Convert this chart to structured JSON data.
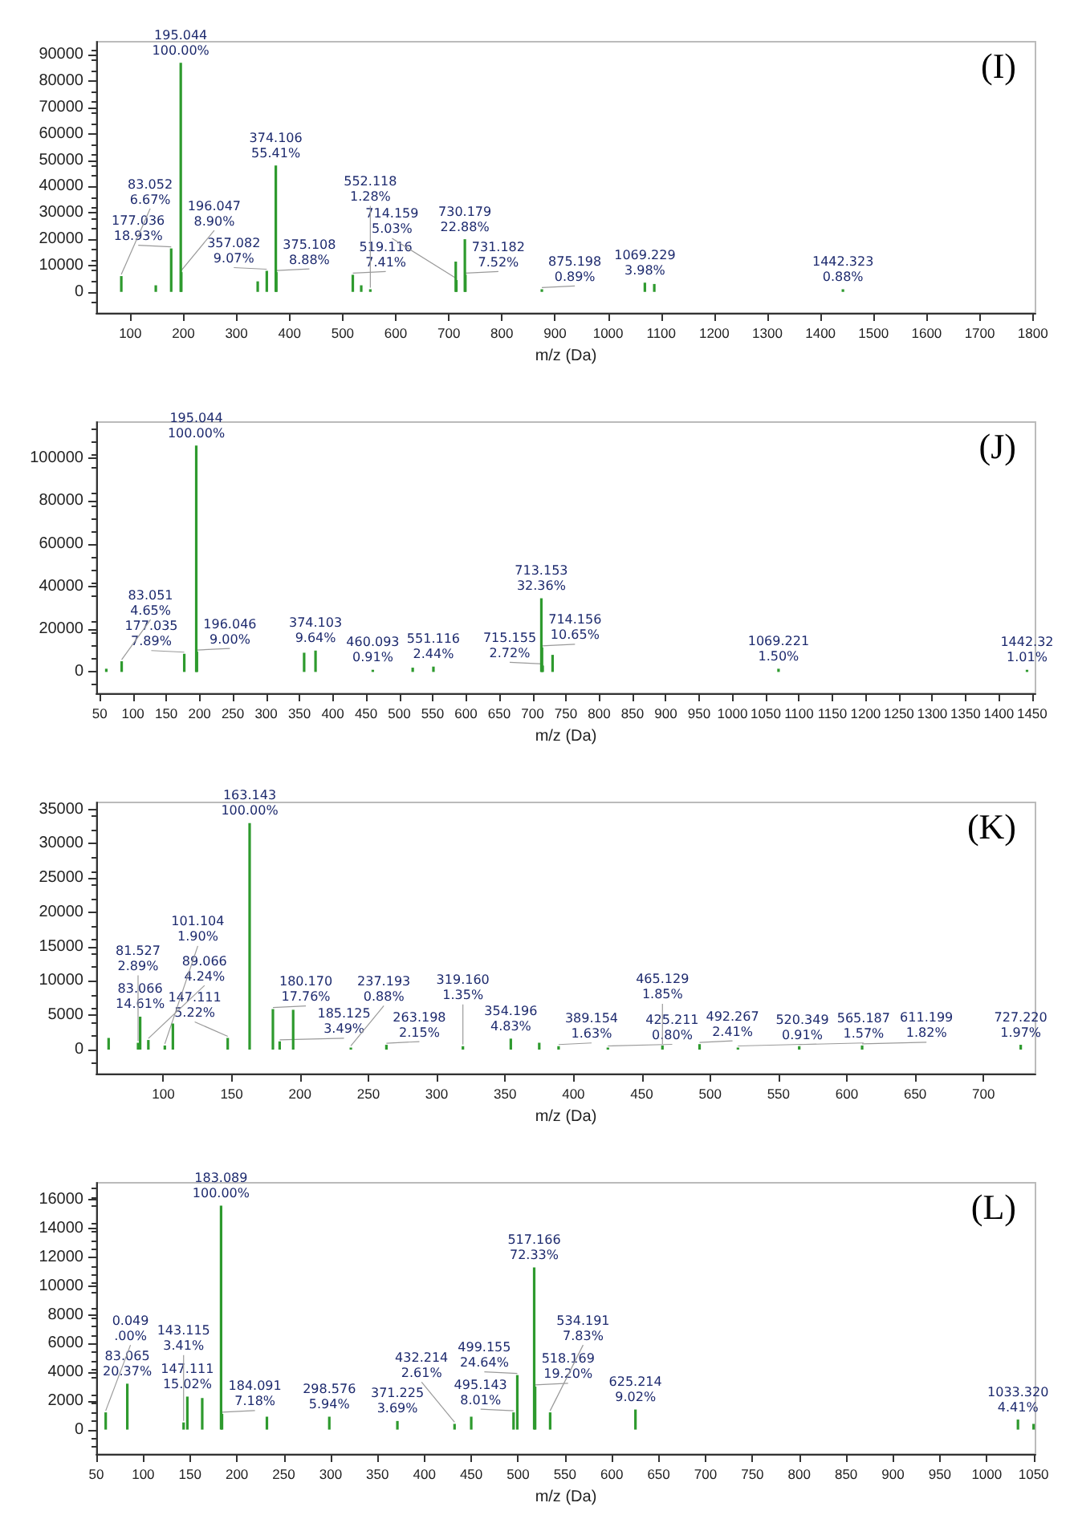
{
  "chart_data": [
    {
      "type": "bar",
      "xlabel": "m/z (Da)",
      "xlim": [
        36,
        1805
      ],
      "xticks": [
        100,
        200,
        300,
        400,
        500,
        600,
        700,
        800,
        900,
        1000,
        1100,
        1200,
        1300,
        1400,
        1500,
        1600,
        1700,
        1800
      ],
      "ylim": [
        -8000,
        95000
      ],
      "yticks": [
        0,
        10000,
        20000,
        30000,
        40000,
        50000,
        60000,
        70000,
        80000,
        90000
      ],
      "series": [
        {
          "color": "#2e9a2e",
          "x": [
            83.052,
            148,
            177.036,
            195.044,
            196.047,
            340,
            357.082,
            374.106,
            375.108,
            519.116,
            535,
            552.118,
            713,
            714.159,
            730.179,
            731.182,
            875.198,
            1069.229,
            1087,
            1442.323
          ],
          "values": [
            6000,
            2500,
            16500,
            87000,
            7500,
            4000,
            8000,
            48000,
            7500,
            6500,
            2500,
            1000,
            11500,
            4500,
            20000,
            6500,
            1000,
            3500,
            3000,
            1000
          ]
        }
      ],
      "annotations": [
        "(I)",
        {
          "text": "195.044\n100.00%",
          "x": 195.044,
          "y": 87000
        },
        {
          "text": "374.106\n55.41%",
          "x": 374.106,
          "y": 48000
        },
        {
          "text": "730.179\n22.88%",
          "x": 730.179,
          "y": 20000
        },
        {
          "text": "177.036\n18.93%",
          "x": 177.036,
          "y": 16500
        },
        {
          "text": "357.082\n9.07%",
          "x": 357.082,
          "y": 8000
        },
        {
          "text": "196.047\n8.90%",
          "x": 196.047,
          "y": 7500
        },
        {
          "text": "375.108\n8.88%",
          "x": 375.108,
          "y": 7500
        },
        {
          "text": "731.182\n7.52%",
          "x": 731.182,
          "y": 6500
        },
        {
          "text": "519.116\n7.41%",
          "x": 519.116,
          "y": 6500
        },
        {
          "text": "83.052\n6.67%",
          "x": 83.052,
          "y": 6000
        },
        {
          "text": "714.159\n5.03%",
          "x": 714.159,
          "y": 4500
        },
        {
          "text": "1069.229\n3.98%",
          "x": 1069.229,
          "y": 3500
        },
        {
          "text": "552.118\n1.28%",
          "x": 552.118,
          "y": 1000
        },
        {
          "text": "875.198\n0.89%",
          "x": 875.198,
          "y": 1000
        },
        {
          "text": "1442.323\n0.88%",
          "x": 1442.323,
          "y": 1000
        }
      ]
    },
    {
      "type": "bar",
      "xlabel": "m/z (Da)",
      "xlim": [
        45,
        1455
      ],
      "xticks": [
        50,
        100,
        150,
        200,
        250,
        300,
        350,
        400,
        450,
        500,
        550,
        600,
        650,
        700,
        750,
        800,
        850,
        900,
        950,
        1000,
        1050,
        1100,
        1150,
        1200,
        1250,
        1300,
        1350,
        1400,
        1450
      ],
      "ylim": [
        -10000,
        117000
      ],
      "yticks": [
        0,
        20000,
        40000,
        60000,
        80000,
        100000
      ],
      "series": [
        {
          "color": "#2e9a2e",
          "x": [
            60,
            83.051,
            177.035,
            195.044,
            196.046,
            357,
            374.103,
            460.093,
            520,
            551.116,
            713.153,
            714.156,
            715.155,
            730,
            1069.221,
            1442.32
          ],
          "values": [
            1500,
            5000,
            8500,
            106000,
            9500,
            9000,
            10000,
            1000,
            2000,
            2500,
            34500,
            11500,
            3000,
            8000,
            1500,
            1000
          ]
        }
      ],
      "annotations": [
        "(J)",
        {
          "text": "195.044\n100.00%",
          "x": 195.044,
          "y": 106000
        },
        {
          "text": "713.153\n32.36%",
          "x": 713.153,
          "y": 34500
        },
        {
          "text": "714.156\n10.65%",
          "x": 714.156,
          "y": 11500
        },
        {
          "text": "374.103\n9.64%",
          "x": 374.103,
          "y": 10000
        },
        {
          "text": "196.046\n9.00%",
          "x": 196.046,
          "y": 9500
        },
        {
          "text": "177.035\n7.89%",
          "x": 177.035,
          "y": 8500
        },
        {
          "text": "83.051\n4.65%",
          "x": 83.051,
          "y": 5000
        },
        {
          "text": "715.155\n2.72%",
          "x": 715.155,
          "y": 3000
        },
        {
          "text": "551.116\n2.44%",
          "x": 551.116,
          "y": 2500
        },
        {
          "text": "1069.221\n1.50%",
          "x": 1069.221,
          "y": 1500
        },
        {
          "text": "1442.32\n1.01%",
          "x": 1442.32,
          "y": 1000
        },
        {
          "text": "460.093\n0.91%",
          "x": 460.093,
          "y": 1000
        }
      ]
    },
    {
      "type": "bar",
      "xlabel": "m/z (Da)",
      "xlim": [
        51,
        738
      ],
      "xticks": [
        100,
        150,
        200,
        250,
        300,
        350,
        400,
        450,
        500,
        550,
        600,
        650,
        700
      ],
      "ylim": [
        -3500,
        36000
      ],
      "yticks": [
        0,
        5000,
        10000,
        15000,
        20000,
        25000,
        30000,
        35000
      ],
      "series": [
        {
          "color": "#2e9a2e",
          "x": [
            60,
            81.527,
            83.066,
            89.066,
            101.104,
            107,
            147.111,
            163.143,
            180.17,
            185.125,
            195,
            237.193,
            263.198,
            319.16,
            354.196,
            375,
            389.154,
            425.211,
            465.129,
            492.267,
            520.349,
            565.187,
            611.199,
            727.22
          ],
          "values": [
            1700,
            1000,
            4800,
            1400,
            600,
            3800,
            1700,
            33000,
            5900,
            1200,
            5800,
            300,
            700,
            500,
            1600,
            1000,
            500,
            300,
            600,
            800,
            300,
            500,
            600,
            700
          ]
        }
      ],
      "annotations": [
        "(K)",
        {
          "text": "163.143\n100.00%",
          "x": 163.143,
          "y": 33000
        },
        {
          "text": "180.170\n17.76%",
          "x": 180.17,
          "y": 5900
        },
        {
          "text": "83.066\n14.61%",
          "x": 83.066,
          "y": 4800
        },
        {
          "text": "147.111\n5.22%",
          "x": 147.111,
          "y": 1700
        },
        {
          "text": "354.196\n4.83%",
          "x": 354.196,
          "y": 1600
        },
        {
          "text": "185.125\n3.49%",
          "x": 185.125,
          "y": 1200
        },
        {
          "text": "89.066\n4.24%",
          "x": 89.066,
          "y": 1400
        },
        {
          "text": "81.527\n2.89%",
          "x": 81.527,
          "y": 1000
        },
        {
          "text": "101.104\n1.90%",
          "x": 101.104,
          "y": 600
        },
        {
          "text": "263.198\n2.15%",
          "x": 263.198,
          "y": 700
        },
        {
          "text": "237.193\n0.88%",
          "x": 237.193,
          "y": 300
        },
        {
          "text": "319.160\n1.35%",
          "x": 319.16,
          "y": 500
        },
        {
          "text": "389.154\n1.63%",
          "x": 389.154,
          "y": 500
        },
        {
          "text": "425.211\n0.80%",
          "x": 425.211,
          "y": 300
        },
        {
          "text": "465.129\n1.85%",
          "x": 465.129,
          "y": 600
        },
        {
          "text": "492.267\n2.41%",
          "x": 492.267,
          "y": 800
        },
        {
          "text": "520.349\n0.91%",
          "x": 520.349,
          "y": 300
        },
        {
          "text": "565.187\n1.57%",
          "x": 565.187,
          "y": 500
        },
        {
          "text": "611.199\n1.82%",
          "x": 611.199,
          "y": 600
        },
        {
          "text": "727.220\n1.97%",
          "x": 727.22,
          "y": 700
        }
      ]
    },
    {
      "type": "bar",
      "xlabel": "m/z (Da)",
      "xlim": [
        50,
        1052
      ],
      "xticks": [
        50,
        100,
        150,
        200,
        250,
        300,
        350,
        400,
        450,
        500,
        550,
        600,
        650,
        700,
        750,
        800,
        850,
        900,
        950,
        1000,
        1050
      ],
      "ylim": [
        -1700,
        17200
      ],
      "yticks": [
        0,
        2000,
        4000,
        6000,
        8000,
        10000,
        12000,
        14000,
        16000
      ],
      "series": [
        {
          "color": "#2e9a2e",
          "x": [
            60,
            83.065,
            143.115,
            147.111,
            163,
            183.089,
            184.091,
            232,
            298.576,
            371.225,
            432.214,
            450,
            495.143,
            499.155,
            517.166,
            518.169,
            534.191,
            625.214,
            1033.32,
            1050
          ],
          "values": [
            1200,
            3200,
            500,
            2300,
            2200,
            15600,
            1100,
            900,
            900,
            600,
            400,
            900,
            1200,
            3800,
            11300,
            3000,
            1200,
            1400,
            700,
            400
          ]
        }
      ],
      "annotations": [
        "(L)",
        {
          "text": "183.089\n100.00%",
          "x": 183.089,
          "y": 15600
        },
        {
          "text": "517.166\n72.33%",
          "x": 517.166,
          "y": 11300
        },
        {
          "text": "499.155\n24.64%",
          "x": 499.155,
          "y": 3800
        },
        {
          "text": "83.065\n20.37%",
          "x": 83.065,
          "y": 3200
        },
        {
          "text": "518.169\n19.20%",
          "x": 518.169,
          "y": 3000
        },
        {
          "text": "147.111\n15.02%",
          "x": 147.111,
          "y": 2300
        },
        {
          "text": "0.049\n.00%",
          "x": 60,
          "y": 1200
        },
        {
          "text": "625.214\n9.02%",
          "x": 625.214,
          "y": 1400
        },
        {
          "text": "495.143\n8.01%",
          "x": 495.143,
          "y": 1200
        },
        {
          "text": "534.191\n7.83%",
          "x": 534.191,
          "y": 1200
        },
        {
          "text": "184.091\n7.18%",
          "x": 184.091,
          "y": 1100
        },
        {
          "text": "298.576\n5.94%",
          "x": 298.576,
          "y": 900
        },
        {
          "text": "1033.320\n4.41%",
          "x": 1033.32,
          "y": 700
        },
        {
          "text": "371.225\n3.69%",
          "x": 371.225,
          "y": 600
        },
        {
          "text": "143.115\n3.41%",
          "x": 143.115,
          "y": 500
        },
        {
          "text": "432.214\n2.61%",
          "x": 432.214,
          "y": 400
        }
      ]
    }
  ]
}
